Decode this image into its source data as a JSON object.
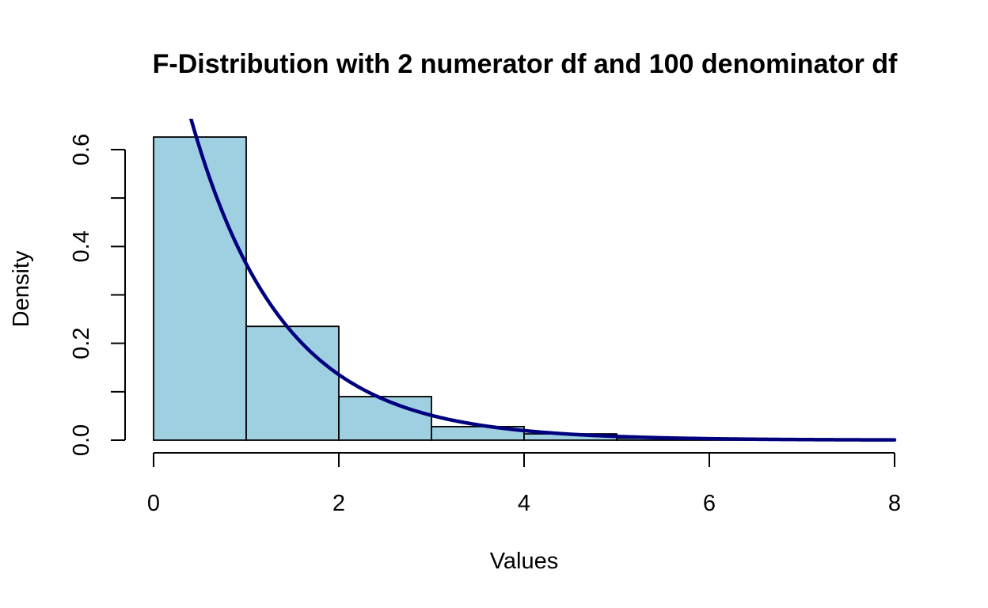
{
  "chart_data": {
    "type": "bar",
    "title": "F-Distribution with 2 numerator df and 100 denominator df",
    "xlabel": "Values",
    "ylabel": "Density",
    "xlim": [
      0,
      8
    ],
    "ylim": [
      0,
      0.65
    ],
    "x_ticks": [
      "0",
      "2",
      "4",
      "6",
      "8"
    ],
    "y_ticks": [
      "0.0",
      "0.2",
      "0.4",
      "0.6"
    ],
    "y_tick_values": [
      0,
      0.2,
      0.4,
      0.6
    ],
    "y_minor_ticks": [
      0,
      0.1,
      0.2,
      0.3,
      0.4,
      0.5,
      0.6
    ],
    "bins": [
      {
        "from": 0,
        "to": 1,
        "density": 0.626
      },
      {
        "from": 1,
        "to": 2,
        "density": 0.235
      },
      {
        "from": 2,
        "to": 3,
        "density": 0.09
      },
      {
        "from": 3,
        "to": 4,
        "density": 0.028
      },
      {
        "from": 4,
        "to": 5,
        "density": 0.013
      },
      {
        "from": 5,
        "to": 6,
        "density": 0.004
      },
      {
        "from": 6,
        "to": 7,
        "density": 0.003
      }
    ],
    "curve": {
      "name": "F density (df1 = 2, df2 = 100)",
      "df1": 2,
      "df2": 100,
      "x_range": [
        0,
        8
      ]
    },
    "grid": false,
    "legend": "none",
    "colors": {
      "bar_fill": "#9fd0e1",
      "bar_border": "#000000",
      "curve": "#00007f"
    }
  }
}
